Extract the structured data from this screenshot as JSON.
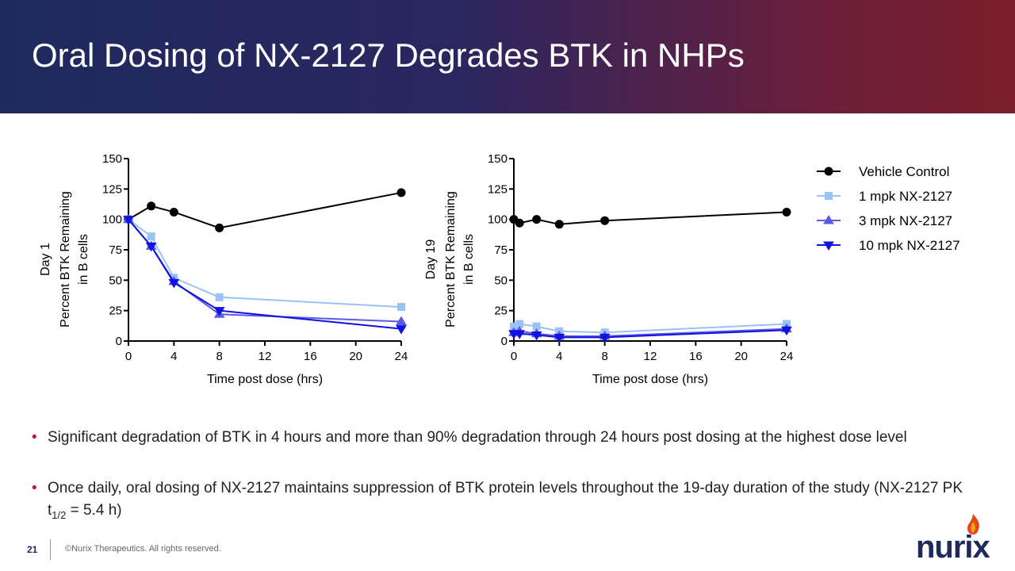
{
  "header": {
    "title": "Oral Dosing of NX-2127 Degrades BTK in NHPs"
  },
  "chart_data": [
    {
      "type": "line",
      "y_label": [
        "Day 1",
        "Percent BTK Remaining",
        "in  B cells"
      ],
      "x_label": "Time post dose (hrs)",
      "x": [
        0,
        2,
        4,
        8,
        24
      ],
      "xlim": [
        0,
        24
      ],
      "xticks": [
        0,
        4,
        8,
        12,
        16,
        20,
        24
      ],
      "ylim": [
        0,
        150
      ],
      "yticks": [
        0,
        25,
        50,
        75,
        100,
        125,
        150
      ],
      "series": [
        {
          "color": "#000000",
          "marker": "circle",
          "values": [
            100,
            111,
            106,
            93,
            122
          ]
        },
        {
          "color": "#99c2f5",
          "marker": "square",
          "values": [
            100,
            86,
            52,
            36,
            28
          ]
        },
        {
          "color": "#5a5ae8",
          "marker": "triangle-up",
          "values": [
            100,
            78,
            49,
            22,
            16
          ]
        },
        {
          "color": "#1212e0",
          "marker": "triangle-down",
          "values": [
            100,
            78,
            48,
            25,
            10
          ]
        }
      ]
    },
    {
      "type": "line",
      "y_label": [
        "Day 19",
        "Percent BTK Remaining",
        "in  B cells"
      ],
      "x_label": "Time post dose (hrs)",
      "x": [
        0,
        0.5,
        2,
        4,
        8,
        24
      ],
      "xlim": [
        0,
        24
      ],
      "xticks": [
        0,
        4,
        8,
        12,
        16,
        20,
        24
      ],
      "ylim": [
        0,
        150
      ],
      "yticks": [
        0,
        25,
        50,
        75,
        100,
        125,
        150
      ],
      "legend": "right",
      "series": [
        {
          "name": "Vehicle Control",
          "color": "#000000",
          "marker": "circle",
          "values": [
            100,
            97,
            100,
            96,
            99,
            106
          ]
        },
        {
          "name": "1 mpk NX-2127",
          "color": "#99c2f5",
          "marker": "square",
          "values": [
            12,
            14,
            12,
            8,
            7,
            14
          ]
        },
        {
          "name": "3 mpk NX-2127",
          "color": "#5a5ae8",
          "marker": "triangle-up",
          "values": [
            7,
            8,
            6,
            4,
            4,
            10
          ]
        },
        {
          "name": "10 mpk NX-2127",
          "color": "#1212e0",
          "marker": "triangle-down",
          "values": [
            6,
            6,
            5,
            3,
            3,
            9
          ]
        }
      ]
    }
  ],
  "bullets": [
    {
      "text": "Significant degradation of BTK in 4 hours and more than 90% degradation through 24 hours post dosing at the highest dose level"
    },
    {
      "text": "Once daily, oral dosing of NX-2127 maintains suppression of BTK protein levels throughout the 19-day duration of the study (NX-2127 PK t",
      "subscript": "1/2",
      "text_after": " = 5.4 h)"
    }
  ],
  "footer": {
    "page_number": "21",
    "copyright": "©Nurix Therapeutics. All rights reserved.",
    "logo": "nurix"
  }
}
